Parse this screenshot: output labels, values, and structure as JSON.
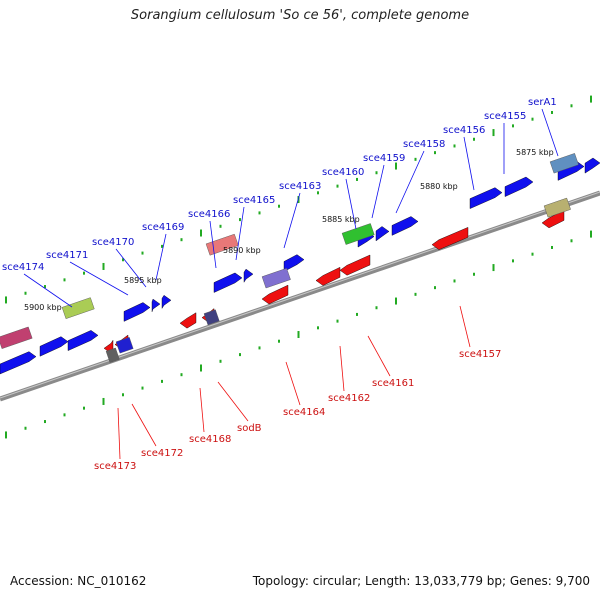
{
  "title": "Sorangium cellulosum 'So ce 56', complete genome",
  "footer": {
    "accession": "Accession: NC_010162",
    "info": "Topology: circular; Length: 13,033,779 bp; Genes: 9,700"
  },
  "colors": {
    "forward": "#1010ee",
    "reverse": "#ee1010",
    "backbone": "#8a8a8a",
    "ticks": "#22aa22"
  },
  "kbp_labels": [
    "5900 kbp",
    "5895 kbp",
    "5890 kbp",
    "5885 kbp",
    "5880 kbp",
    "5875 kbp"
  ],
  "forward_labels": [
    "sce4174",
    "sce4171",
    "sce4170",
    "sce4169",
    "sce4166",
    "sce4165",
    "sce4163",
    "sce4160",
    "sce4159",
    "sce4158",
    "sce4156",
    "sce4155",
    "serA1"
  ],
  "reverse_labels": [
    "sce4173",
    "sce4172",
    "sce4168",
    "sodB",
    "sce4164",
    "sce4162",
    "sce4161",
    "sce4157"
  ]
}
